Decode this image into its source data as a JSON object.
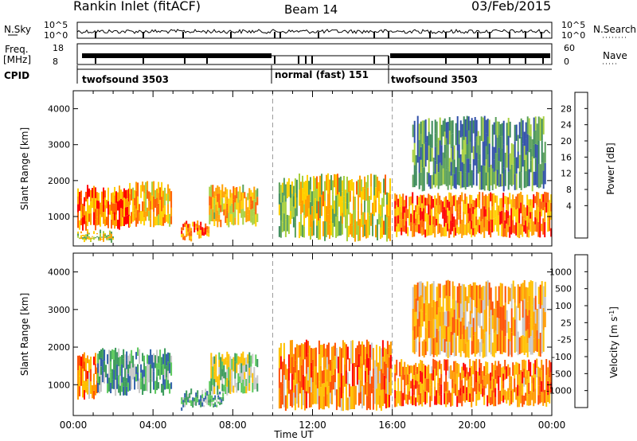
{
  "header": {
    "station": "Rankin Inlet (fitACF)",
    "beam": "Beam 14",
    "date": "03/Feb/2015"
  },
  "panels": {
    "nsky_label": "N.Sky",
    "nsky_ticks": [
      "10^5",
      "10^0"
    ],
    "nsearch_label": "N.Search",
    "nsearch_ticks": [
      "10^5",
      "10^0"
    ],
    "freq_label_1": "Freq.",
    "freq_label_2": "[MHz]",
    "freq_ticks": [
      "18",
      "8"
    ],
    "nave_label": "Nave",
    "nave_ticks": [
      "60",
      "0"
    ],
    "cpid_label": "CPID",
    "cpid_modes": [
      "twofsound 3503",
      "normal (fast) 151",
      "twofsound 3503"
    ]
  },
  "colors": {
    "power": [
      "#0000ff",
      "#2f4fa8",
      "#3a8a5a",
      "#5aa05a",
      "#a8d040",
      "#ffd000",
      "#ffa000",
      "#ff6000",
      "#ff0000"
    ],
    "velocity": [
      "#ff0000",
      "#ff5000",
      "#ff9a00",
      "#ffc000",
      "#c8c8c8",
      "#5ac85a",
      "#3a9a5a",
      "#2f5fa8",
      "#1a2fb0"
    ]
  },
  "chart_data": [
    {
      "type": "heatmap",
      "title": "Power",
      "xlabel": "",
      "ylabel": "Slant Range [km]",
      "xlim": [
        "00:00",
        "00:00"
      ],
      "ylim": [
        180,
        4500
      ],
      "x_ticks": [
        "00:00",
        "04:00",
        "08:00",
        "12:00",
        "16:00",
        "20:00",
        "00:00"
      ],
      "y_ticks": [
        1000,
        2000,
        3000,
        4000
      ],
      "colorbar_label": "Power [dB]",
      "colorbar_ticks": [
        "28",
        "24",
        "20",
        "16",
        "12",
        "8",
        "4"
      ],
      "colormap": "power",
      "regions": [
        {
          "t0": 0.2,
          "t1": 2.8,
          "r0": 600,
          "r1": 1900,
          "level": 0.85
        },
        {
          "t0": 2.8,
          "t1": 4.9,
          "r0": 700,
          "r1": 2000,
          "level": 0.72
        },
        {
          "t0": 0.2,
          "t1": 2.0,
          "r0": 250,
          "r1": 650,
          "level": 0.55
        },
        {
          "t0": 5.4,
          "t1": 6.8,
          "r0": 300,
          "r1": 900,
          "level": 0.8
        },
        {
          "t0": 6.8,
          "t1": 9.2,
          "r0": 700,
          "r1": 1900,
          "level": 0.65
        },
        {
          "t0": 10.3,
          "t1": 11.2,
          "r0": 400,
          "r1": 2100,
          "level": 0.45
        },
        {
          "t0": 11.3,
          "t1": 15.9,
          "r0": 300,
          "r1": 2200,
          "level": 0.6
        },
        {
          "t0": 16.1,
          "t1": 24.0,
          "r0": 400,
          "r1": 1700,
          "level": 0.8
        },
        {
          "t0": 17.0,
          "t1": 23.7,
          "r0": 1700,
          "r1": 3800,
          "level": 0.3
        }
      ]
    },
    {
      "type": "heatmap",
      "title": "Velocity",
      "xlabel": "Time UT",
      "ylabel": "Slant Range [km]",
      "xlim": [
        "00:00",
        "00:00"
      ],
      "ylim": [
        180,
        4500
      ],
      "x_ticks": [
        "00:00",
        "04:00",
        "08:00",
        "12:00",
        "16:00",
        "20:00",
        "00:00"
      ],
      "y_ticks": [
        1000,
        2000,
        3000,
        4000
      ],
      "colorbar_label": "Velocity [m s^-1]",
      "colorbar_ticks": [
        "1000",
        "500",
        "100",
        "25",
        "-25",
        "-100",
        "-500",
        "-1000"
      ],
      "colormap": "velocity",
      "regions": [
        {
          "t0": 0.2,
          "t1": 1.2,
          "r0": 600,
          "r1": 1900,
          "level": 0.25
        },
        {
          "t0": 1.2,
          "t1": 4.9,
          "r0": 700,
          "r1": 2000,
          "level": 0.7
        },
        {
          "t0": 5.4,
          "t1": 7.5,
          "r0": 300,
          "r1": 900,
          "level": 0.7
        },
        {
          "t0": 6.8,
          "t1": 9.2,
          "r0": 700,
          "r1": 1900,
          "level": 0.55
        },
        {
          "t0": 10.3,
          "t1": 15.9,
          "r0": 300,
          "r1": 2200,
          "level": 0.25
        },
        {
          "t0": 16.1,
          "t1": 24.0,
          "r0": 400,
          "r1": 1700,
          "level": 0.22
        },
        {
          "t0": 17.0,
          "t1": 23.7,
          "r0": 1700,
          "r1": 3800,
          "level": 0.3
        }
      ]
    }
  ],
  "time_axis_label": "Time UT"
}
